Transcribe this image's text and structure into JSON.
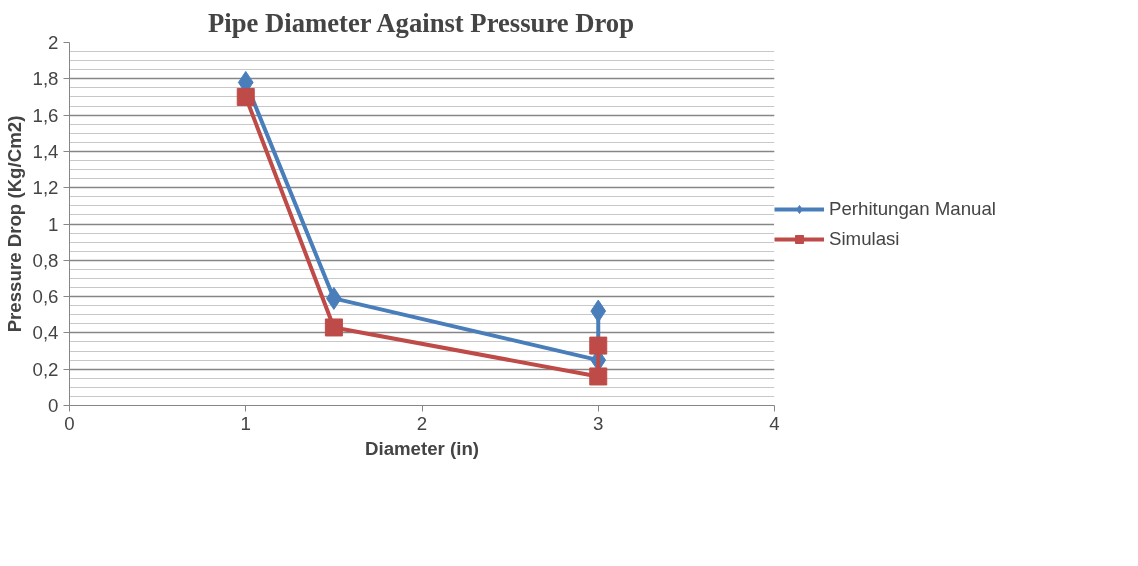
{
  "chart_data": {
    "type": "line",
    "title": "Pipe Diameter Against Pressure Drop",
    "xlabel": "Diameter (in)",
    "ylabel": "Pressure Drop (Kg/Cm2)",
    "series": [
      {
        "name": "Perhitungan Manual",
        "color": "#4a7ebb",
        "marker": "diamond",
        "x": [
          1,
          1.5,
          3,
          3
        ],
        "values": [
          1.78,
          0.59,
          0.25,
          0.52
        ]
      },
      {
        "name": "Simulasi",
        "color": "#be4b48",
        "marker": "square",
        "x": [
          1,
          1.5,
          3,
          3
        ],
        "values": [
          1.7,
          0.43,
          0.16,
          0.33
        ]
      }
    ],
    "xlim": [
      0,
      4
    ],
    "xticks": [
      0,
      1,
      2,
      3,
      4
    ],
    "ylim": [
      0,
      2
    ],
    "yticks": [
      0,
      {
        "value": 0.2,
        "label": "0,2"
      },
      {
        "value": 0.4,
        "label": "0,4"
      },
      {
        "value": 0.6,
        "label": "0,6"
      },
      {
        "value": 0.8,
        "label": "0,8"
      },
      1,
      {
        "value": 1.2,
        "label": "1,2"
      },
      {
        "value": 1.4,
        "label": "1,4"
      },
      {
        "value": 1.6,
        "label": "1,6"
      },
      {
        "value": 1.8,
        "label": "1,8"
      },
      2
    ],
    "grid": "y",
    "legend": "right",
    "line_style": "solid"
  }
}
